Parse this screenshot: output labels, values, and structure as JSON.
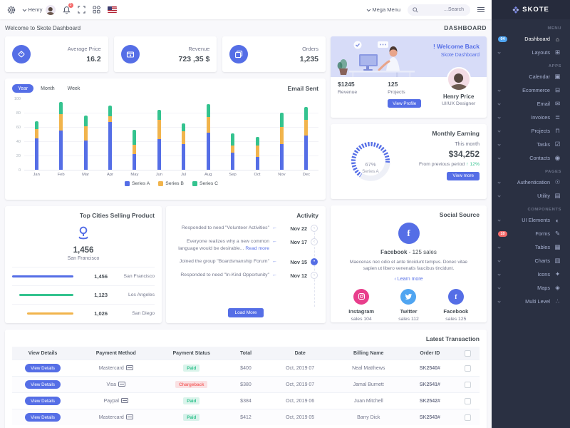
{
  "logo": {
    "brand": "SKOTE"
  },
  "topbar": {
    "user_name": "Henry",
    "notification_count": "3",
    "mega_menu": "Mega Menu",
    "search_placeholder": "...Search"
  },
  "page": {
    "welcome_text": "Welcome to Skote Dashboard",
    "title": "DASHBOARD"
  },
  "stats": {
    "cards": [
      {
        "label": "Average Price",
        "value": "16.2",
        "icon": "tag-icon"
      },
      {
        "label": "Revenue",
        "value": "723 ,35 $",
        "icon": "archive-icon"
      },
      {
        "label": "Orders",
        "value": "1,235",
        "icon": "copy-icon"
      }
    ]
  },
  "welcome_card": {
    "title": "! Welcome Back",
    "subtitle": "Skote Dashboard",
    "stats": [
      {
        "value": "$1245",
        "label": "Revenue"
      },
      {
        "value": "125",
        "label": "Projects"
      }
    ],
    "button_label": "View Profile",
    "user_name": "Henry Price",
    "user_role": "UI/UX Designer"
  },
  "email_sent": {
    "title": "Email Sent",
    "tabs": [
      {
        "label": "Year",
        "active": true
      },
      {
        "label": "Month",
        "active": false
      },
      {
        "label": "Week",
        "active": false
      }
    ]
  },
  "monthly_earning": {
    "title": "Monthly Earning",
    "period": "This month",
    "amount": "$34,252",
    "comparison": "From previous period",
    "delta": "↑ 12%",
    "button_label": "View more",
    "gauge_value": "67%",
    "gauge_series": "Series A"
  },
  "top_cities": {
    "title": "Top Cities Selling Product",
    "highlight_value": "1,456",
    "highlight_city": "San Francisco",
    "rows": [
      {
        "city": "San Francisco",
        "value": "1,456",
        "color": "#556ee6",
        "pct": 100
      },
      {
        "city": "Los Angeles",
        "value": "1,123",
        "color": "#34c38f",
        "pct": 88
      },
      {
        "city": "San Diego",
        "value": "1,026",
        "color": "#f1b44c",
        "pct": 76
      }
    ]
  },
  "activity": {
    "title": "Activity",
    "items": [
      {
        "text": "Responded to need \"Volunteer Activities\"",
        "link": "",
        "date": "Nov 22",
        "active": false
      },
      {
        "text": "Everyone realizes why a new common language would be desirable... ",
        "link": "Read more",
        "date": "Nov 17",
        "active": false
      },
      {
        "text": "Joined the group \"Boardsmanship Forum\"",
        "link": "",
        "date": "Nov 15",
        "active": true
      },
      {
        "text": "Responded to need \"In-Kind Opportunity\"",
        "link": "",
        "date": "Nov 12",
        "active": false
      }
    ],
    "load_more": "Load More"
  },
  "social": {
    "title": "Social Source",
    "main_name": "Facebook",
    "main_sales": " - 125 sales",
    "description": "Maecenas nec odio et ante tincidunt tempus. Donec vitae sapien ut libero venenatis faucibus tincidunt.",
    "learn_more": "‹ Learn more",
    "items": [
      {
        "name": "Instagram",
        "sales": "sales 104",
        "color": "#e83e8c",
        "icon": "instagram-icon"
      },
      {
        "name": "Twitter",
        "sales": "sales 112",
        "color": "#50a5f1",
        "icon": "twitter-icon"
      },
      {
        "name": "Facebook",
        "sales": "sales 125",
        "color": "#556ee6",
        "icon": "facebook-icon"
      }
    ]
  },
  "transactions": {
    "title": "Latest Transaction",
    "button_label": "View Details",
    "columns": [
      "View Details",
      "Payment Method",
      "Payment Status",
      "Total",
      "Date",
      "Billing Name",
      "Order ID"
    ],
    "rows": [
      {
        "method": "Mastercard",
        "status": "Paid",
        "status_color": "success",
        "total": "$400",
        "date": "Oct, 2019 07",
        "name": "Neal Matthews",
        "order_id": "SK2540#"
      },
      {
        "method": "Visa",
        "status": "Chargeback",
        "status_color": "danger",
        "total": "$380",
        "date": "Oct, 2019 07",
        "name": "Jamal Burnett",
        "order_id": "SK2541#"
      },
      {
        "method": "Paypal",
        "status": "Paid",
        "status_color": "success",
        "total": "$384",
        "date": "Oct, 2019 06",
        "name": "Juan Mitchell",
        "order_id": "SK2542#"
      },
      {
        "method": "Mastercard",
        "status": "Paid",
        "status_color": "success",
        "total": "$412",
        "date": "Oct, 2019 05",
        "name": "Barry Dick",
        "order_id": "SK2543#"
      }
    ]
  },
  "sidebar": {
    "sections": [
      {
        "label": "MENU",
        "items": [
          {
            "label": "Dashboard",
            "icon": "home-icon",
            "active": true,
            "badge": "04",
            "badge_color": "#50a5f1"
          },
          {
            "label": "Layouts",
            "icon": "layout-icon",
            "chevron": true
          }
        ]
      },
      {
        "label": "APPS",
        "items": [
          {
            "label": "Calendar",
            "icon": "calendar-icon"
          },
          {
            "label": "Ecommerce",
            "icon": "cart-icon",
            "chevron": true
          },
          {
            "label": "Email",
            "icon": "envelope-icon",
            "chevron": true
          },
          {
            "label": "Invoices",
            "icon": "receipt-icon",
            "chevron": true
          },
          {
            "label": "Projects",
            "icon": "briefcase-icon",
            "chevron": true
          },
          {
            "label": "Tasks",
            "icon": "task-icon",
            "chevron": true
          },
          {
            "label": "Contacts",
            "icon": "contacts-icon",
            "chevron": true
          }
        ]
      },
      {
        "label": "PAGES",
        "items": [
          {
            "label": "Authentication",
            "icon": "user-circle-icon",
            "chevron": true
          },
          {
            "label": "Utility",
            "icon": "file-icon",
            "chevron": true
          }
        ]
      },
      {
        "label": "COMPONENTS",
        "items": [
          {
            "label": "UI Elements",
            "icon": "tone-icon",
            "chevron": true
          },
          {
            "label": "Forms",
            "icon": "clipboard-icon",
            "badge": "10",
            "badge_color": "#f46a6a"
          },
          {
            "label": "Tables",
            "icon": "table-icon",
            "chevron": true
          },
          {
            "label": "Charts",
            "icon": "chart-icon",
            "chevron": true
          },
          {
            "label": "Icons",
            "icon": "aperture-icon",
            "chevron": true
          },
          {
            "label": "Maps",
            "icon": "map-icon",
            "chevron": true
          },
          {
            "label": "Multi Level",
            "icon": "share-icon",
            "chevron": true
          }
        ]
      }
    ]
  },
  "chart_data": [
    {
      "id": "email_sent",
      "type": "bar",
      "stacked": true,
      "title": "Email Sent",
      "categories": [
        "Jan",
        "Feb",
        "Mar",
        "Apr",
        "May",
        "Jun",
        "Jul",
        "Aug",
        "Sep",
        "Oct",
        "Nov",
        "Dec"
      ],
      "series": [
        {
          "name": "Series A",
          "color": "#556ee6",
          "values": [
            44,
            55,
            41,
            67,
            22,
            43,
            36,
            52,
            24,
            18,
            36,
            48
          ]
        },
        {
          "name": "Series B",
          "color": "#f1b44c",
          "values": [
            13,
            23,
            20,
            8,
            13,
            27,
            18,
            22,
            10,
            16,
            24,
            22
          ]
        },
        {
          "name": "Series C",
          "color": "#34c38f",
          "values": [
            11,
            17,
            15,
            15,
            21,
            14,
            11,
            18,
            17,
            12,
            20,
            18
          ]
        }
      ],
      "ylim": [
        0,
        100
      ],
      "yticks": [
        0,
        20,
        40,
        60,
        80,
        100
      ],
      "grid": true,
      "legend_position": "bottom"
    },
    {
      "id": "monthly_earning_gauge",
      "type": "radial",
      "value": 67,
      "label": "Series A",
      "color": "#556ee6"
    },
    {
      "id": "top_cities",
      "type": "bar",
      "categories": [
        "San Francisco",
        "Los Angeles",
        "San Diego"
      ],
      "values": [
        1456,
        1123,
        1026
      ],
      "colors": [
        "#556ee6",
        "#34c38f",
        "#f1b44c"
      ]
    }
  ],
  "colors": {
    "primary": "#556ee6",
    "success": "#34c38f",
    "warning": "#f1b44c",
    "danger": "#f46a6a",
    "info": "#50a5f1",
    "pink": "#e83e8c",
    "sidebar_bg": "#2a3042",
    "body_bg": "#f8f8fb"
  }
}
